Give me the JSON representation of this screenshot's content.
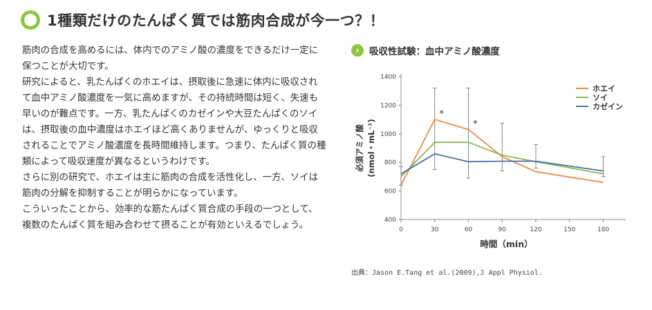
{
  "header": {
    "title": "1種類だけのたんぱく質では筋肉合成が今一つ？！"
  },
  "body": {
    "paragraphs": [
      "筋肉の合成を高めるには、体内でのアミノ酸の濃度をできるだけ一定に保つことが大切です。",
      "研究によると、乳たんぱくのホエイは、摂取後に急速に体内に吸収されて血中アミノ酸濃度を一気に高めますが、その持続時間は短く、失速も早いのが難点です。一方、乳たんぱくのカゼインや大豆たんぱくのソイは、摂取後の血中濃度はホエイほど高くありませんが、ゆっくりと吸収されることでアミノ酸濃度を長時間維持します。つまり、たんぱく質の種類によって吸収速度が異なるというわけです。",
      "さらに別の研究で、ホエイは主に筋肉の合成を活性化し、一方、ソイは筋肉の分解を抑制することが明らかになっています。",
      "こういったことから、効率的な筋たんぱく質合成の手段の一つとして、複数のたんぱく質を組み合わせて摂ることが有効といえるでしょう。"
    ]
  },
  "chart_section": {
    "heading": "吸収性試験：血中アミノ酸濃度",
    "source": "出典：Jason E.Tang et al.(2009),J Appl Physiol."
  },
  "chart_data": {
    "type": "line",
    "title": "",
    "xlabel": "時間（min）",
    "ylabel": "必須アミノ酸",
    "ylabel_unit": "(nmol・mL⁻¹)",
    "x": [
      0,
      30,
      60,
      90,
      120,
      180
    ],
    "x_ticks": [
      0,
      30,
      60,
      90,
      120,
      150,
      180
    ],
    "y_ticks": [
      400,
      600,
      800,
      1000,
      1200,
      1400
    ],
    "xlim": [
      0,
      200
    ],
    "ylim": [
      400,
      1400
    ],
    "series": [
      {
        "name": "ホエイ",
        "color": "#ee8844",
        "values": [
          640,
          1100,
          1030,
          840,
          735,
          660
        ]
      },
      {
        "name": "ソイ",
        "color": "#88b850",
        "values": [
          700,
          940,
          940,
          850,
          805,
          720
        ]
      },
      {
        "name": "カゼイン",
        "color": "#4a6fa5",
        "values": [
          720,
          860,
          805,
          808,
          808,
          740
        ]
      }
    ],
    "error_bars": [
      {
        "x": 0,
        "low": 640,
        "high": 770
      },
      {
        "x": 30,
        "low": 750,
        "high": 1320
      },
      {
        "x": 60,
        "low": 690,
        "high": 1320
      },
      {
        "x": 90,
        "low": 740,
        "high": 1075
      },
      {
        "x": 120,
        "low": 760,
        "high": 925
      },
      {
        "x": 180,
        "low": 700,
        "high": 840
      }
    ],
    "annotations": [
      {
        "x": 30,
        "y": 1100,
        "text": "*"
      },
      {
        "x": 60,
        "y": 1030,
        "text": "*"
      }
    ],
    "legend_position": "top-right",
    "grid": false
  }
}
